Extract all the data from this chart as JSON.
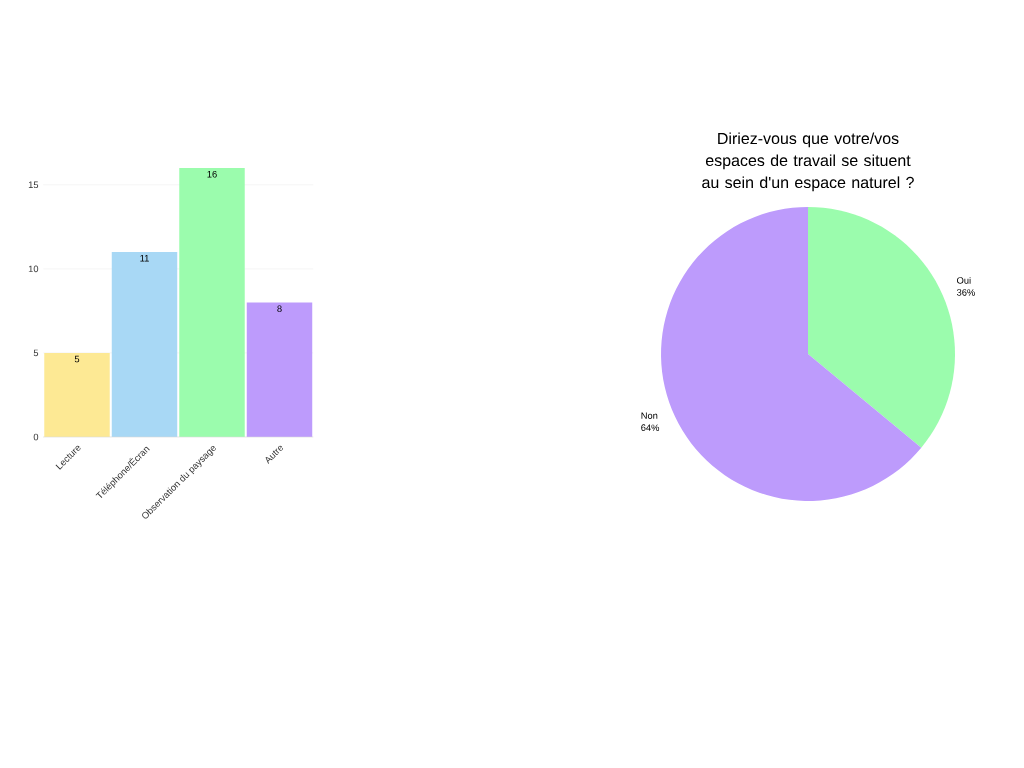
{
  "chart_data": [
    {
      "type": "bar",
      "categories": [
        "Lecture",
        "Téléphone/Écran",
        "Observation du paysage",
        "Autre"
      ],
      "values": [
        5,
        11,
        16,
        8
      ],
      "colors": [
        "#fde994",
        "#a8d8f5",
        "#9bfcad",
        "#bd9bfc"
      ],
      "ylim": [
        0,
        16
      ],
      "yticks": [
        0,
        5,
        10,
        15
      ],
      "grid": "y",
      "data_labels": true
    },
    {
      "type": "pie",
      "title": "Diriez-vous que votre/vos espaces de travail se situent au sein d'un espace naturel ?",
      "categories": [
        "Oui",
        "Non"
      ],
      "values": [
        36,
        64
      ],
      "colors": [
        "#9bfcad",
        "#bd9bfc"
      ],
      "value_labels": [
        "36%",
        "64%"
      ]
    }
  ]
}
